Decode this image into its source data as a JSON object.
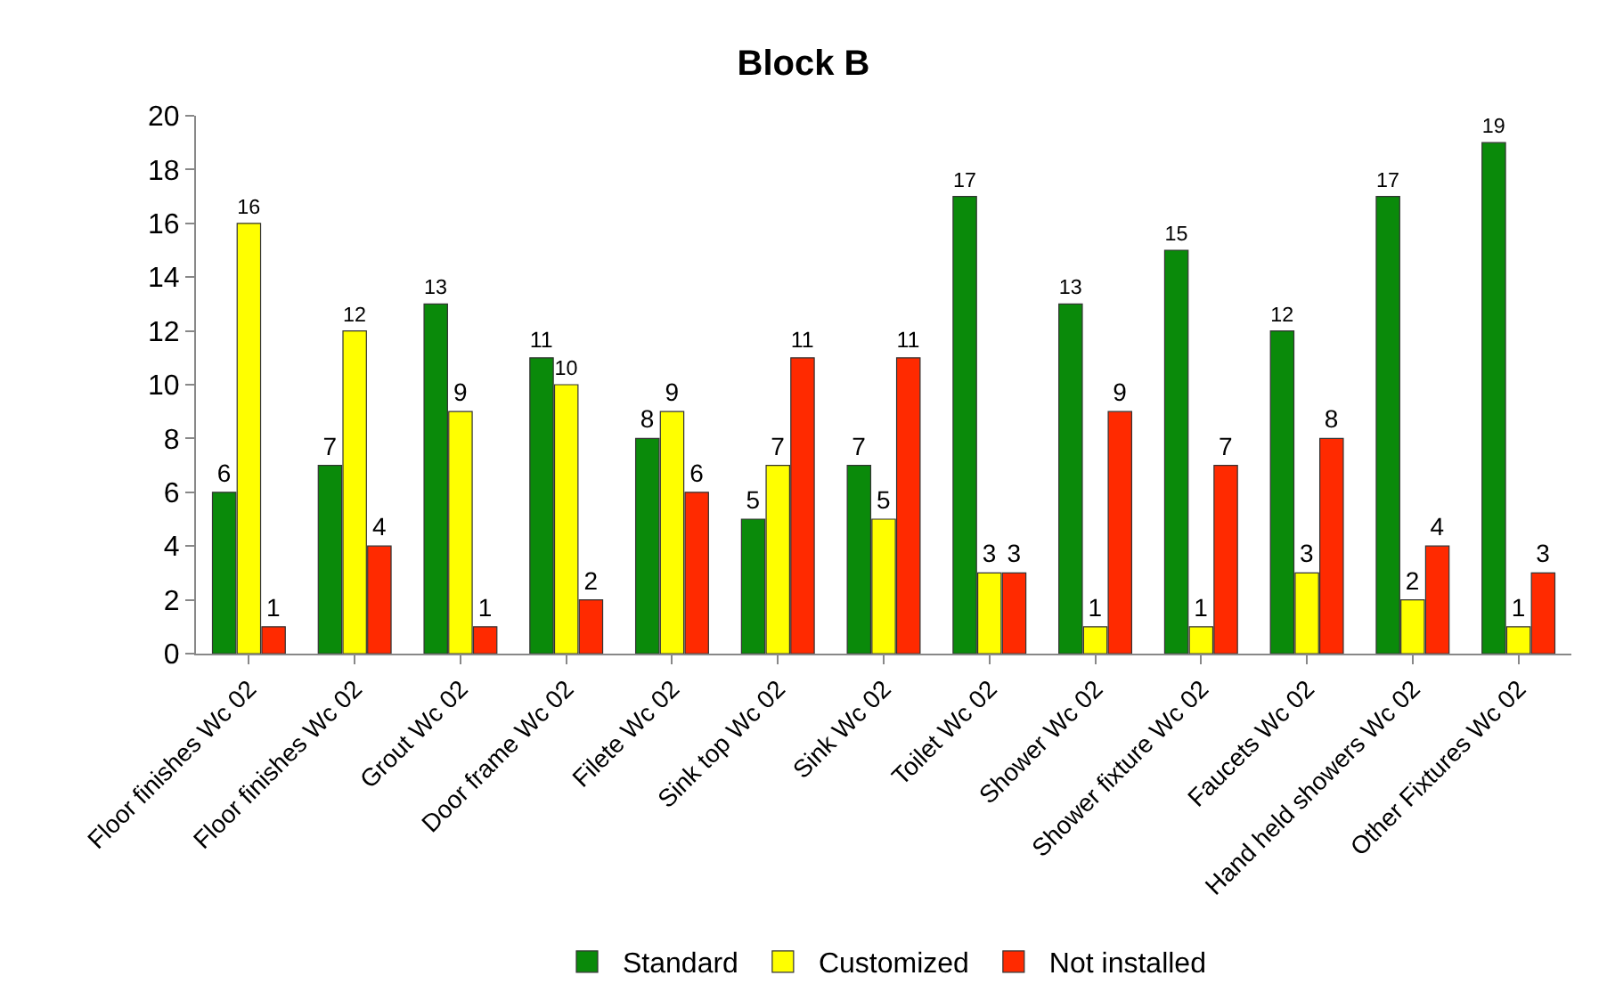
{
  "chart_data": {
    "type": "bar",
    "title": "Block B",
    "categories": [
      "Floor finishes Wc 02",
      "Floor finishes Wc 02",
      "Grout Wc 02",
      "Door frame Wc 02",
      "Filete Wc 02",
      "Sink top Wc 02",
      "Sink Wc 02",
      "Toilet Wc 02",
      "Shower Wc 02",
      "Shower fixture Wc 02",
      "Faucets Wc 02",
      "Hand held showers Wc 02",
      "Other Fixtures Wc 02"
    ],
    "series": [
      {
        "name": "Standard",
        "color": "#0a8a0a",
        "values": [
          6,
          7,
          13,
          11,
          8,
          5,
          7,
          17,
          13,
          15,
          12,
          17,
          19
        ]
      },
      {
        "name": "Customized",
        "color": "#ffff00",
        "values": [
          16,
          12,
          9,
          10,
          9,
          7,
          5,
          3,
          1,
          1,
          3,
          2,
          1
        ]
      },
      {
        "name": "Not installed",
        "color": "#ff2a00",
        "values": [
          1,
          4,
          1,
          2,
          6,
          11,
          11,
          3,
          9,
          7,
          8,
          4,
          3
        ]
      }
    ],
    "ylim": [
      0,
      20
    ],
    "yticks": [
      0,
      2,
      4,
      6,
      8,
      10,
      12,
      14,
      16,
      18,
      20
    ],
    "data_labels": true,
    "legend": "bottom"
  }
}
